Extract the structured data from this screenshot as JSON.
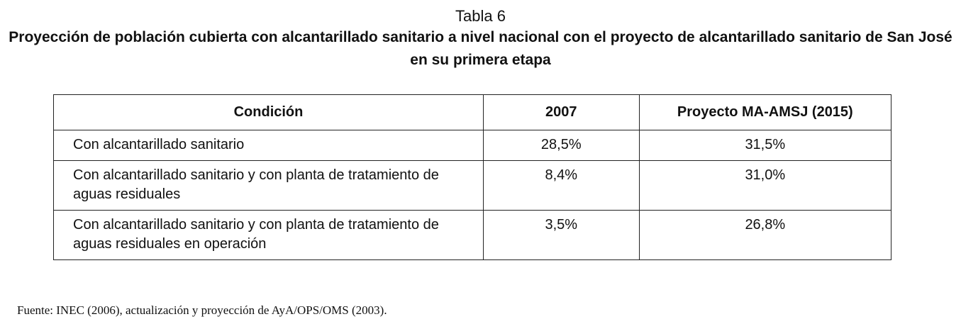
{
  "caption": {
    "label": "Tabla 6",
    "title": "Proyección de población cubierta con alcantarillado sanitario a nivel nacional con el proyecto de alcantarillado sanitario de San José en su primera etapa"
  },
  "table": {
    "headers": [
      "Condición",
      "2007",
      "Proyecto MA-AMSJ (2015)"
    ],
    "rows": [
      {
        "condicion": "Con alcantarillado sanitario",
        "y2007": "28,5%",
        "proyecto": "31,5%"
      },
      {
        "condicion": "Con alcantarillado sanitario y con planta de tratamiento de aguas residuales",
        "y2007": "8,4%",
        "proyecto": "31,0%"
      },
      {
        "condicion": "Con alcantarillado sanitario y con planta de tratamiento de aguas residuales en operación",
        "y2007": "3,5%",
        "proyecto": "26,8%"
      }
    ]
  },
  "source": "Fuente: INEC (2006), actualización y proyección de AyA/OPS/OMS (2003)."
}
